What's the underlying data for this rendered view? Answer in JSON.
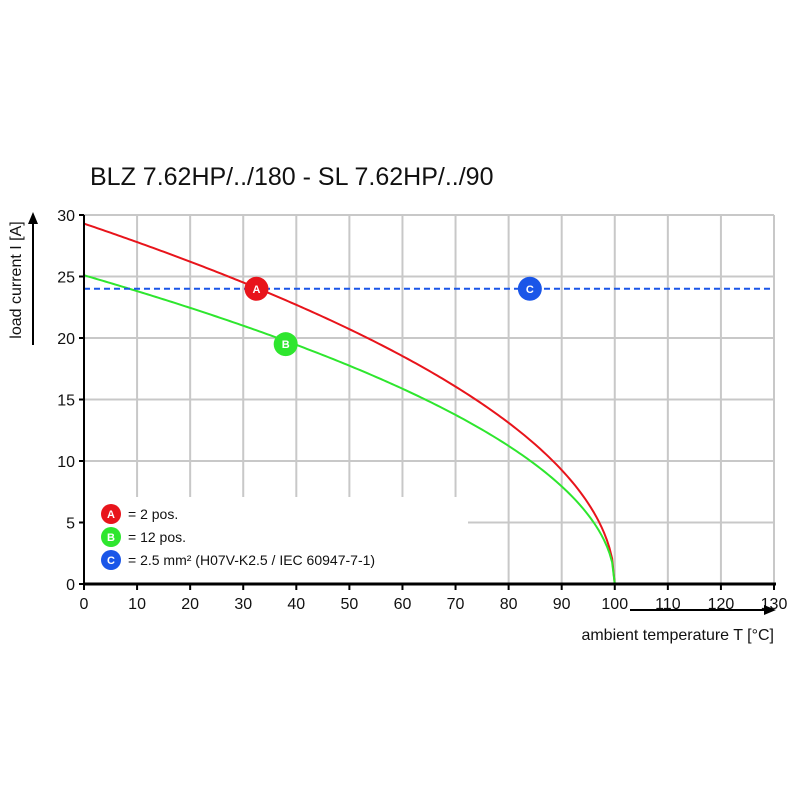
{
  "chart_data": {
    "type": "line",
    "title": "BLZ 7.62HP/../180 - SL 7.62HP/../90",
    "xlabel": "ambient temperature T [°C]",
    "ylabel": "load current I [A]",
    "xlim": [
      0,
      130
    ],
    "ylim": [
      0,
      30
    ],
    "xticks": [
      0,
      10,
      20,
      30,
      40,
      50,
      60,
      70,
      80,
      90,
      100,
      110,
      120,
      130
    ],
    "yticks": [
      0,
      5,
      10,
      15,
      20,
      25,
      30
    ],
    "grid": true,
    "series": [
      {
        "marker": "A",
        "color": "#e8141b",
        "x": [
          0,
          10,
          20,
          30,
          40,
          50,
          60,
          70,
          80,
          90,
          95,
          98,
          99,
          100
        ],
        "y": [
          29.3,
          27.8,
          26.2,
          24.5,
          22.7,
          20.7,
          18.5,
          16.0,
          13.1,
          9.3,
          6.6,
          4.1,
          2.9,
          0
        ]
      },
      {
        "marker": "B",
        "color": "#2ee62e",
        "x": [
          0,
          10,
          20,
          30,
          40,
          50,
          60,
          70,
          80,
          90,
          95,
          98,
          99,
          100
        ],
        "y": [
          25.1,
          23.8,
          22.4,
          21.0,
          19.4,
          17.7,
          15.9,
          13.7,
          11.2,
          7.9,
          5.6,
          3.5,
          2.5,
          0
        ]
      },
      {
        "marker": "C",
        "color": "#1a56e8",
        "x": [
          0,
          130
        ],
        "y": [
          24,
          24
        ],
        "dashed": true
      }
    ],
    "markers": [
      {
        "label": "A",
        "x": 32.5,
        "y": 24,
        "color": "#e8141b"
      },
      {
        "label": "B",
        "x": 38,
        "y": 19.5,
        "color": "#2ee62e"
      },
      {
        "label": "C",
        "x": 84,
        "y": 24,
        "color": "#1a56e8"
      }
    ],
    "legend": {
      "placement": "bottom-left",
      "entries": [
        {
          "label": "A",
          "text": "= 2 pos.",
          "color": "#e8141b"
        },
        {
          "label": "B",
          "text": "= 12 pos.",
          "color": "#2ee62e"
        },
        {
          "label": "C",
          "text": "= 2.5 mm² (H07V-K2.5 / IEC 60947-7-1)",
          "color": "#1a56e8"
        }
      ]
    }
  }
}
